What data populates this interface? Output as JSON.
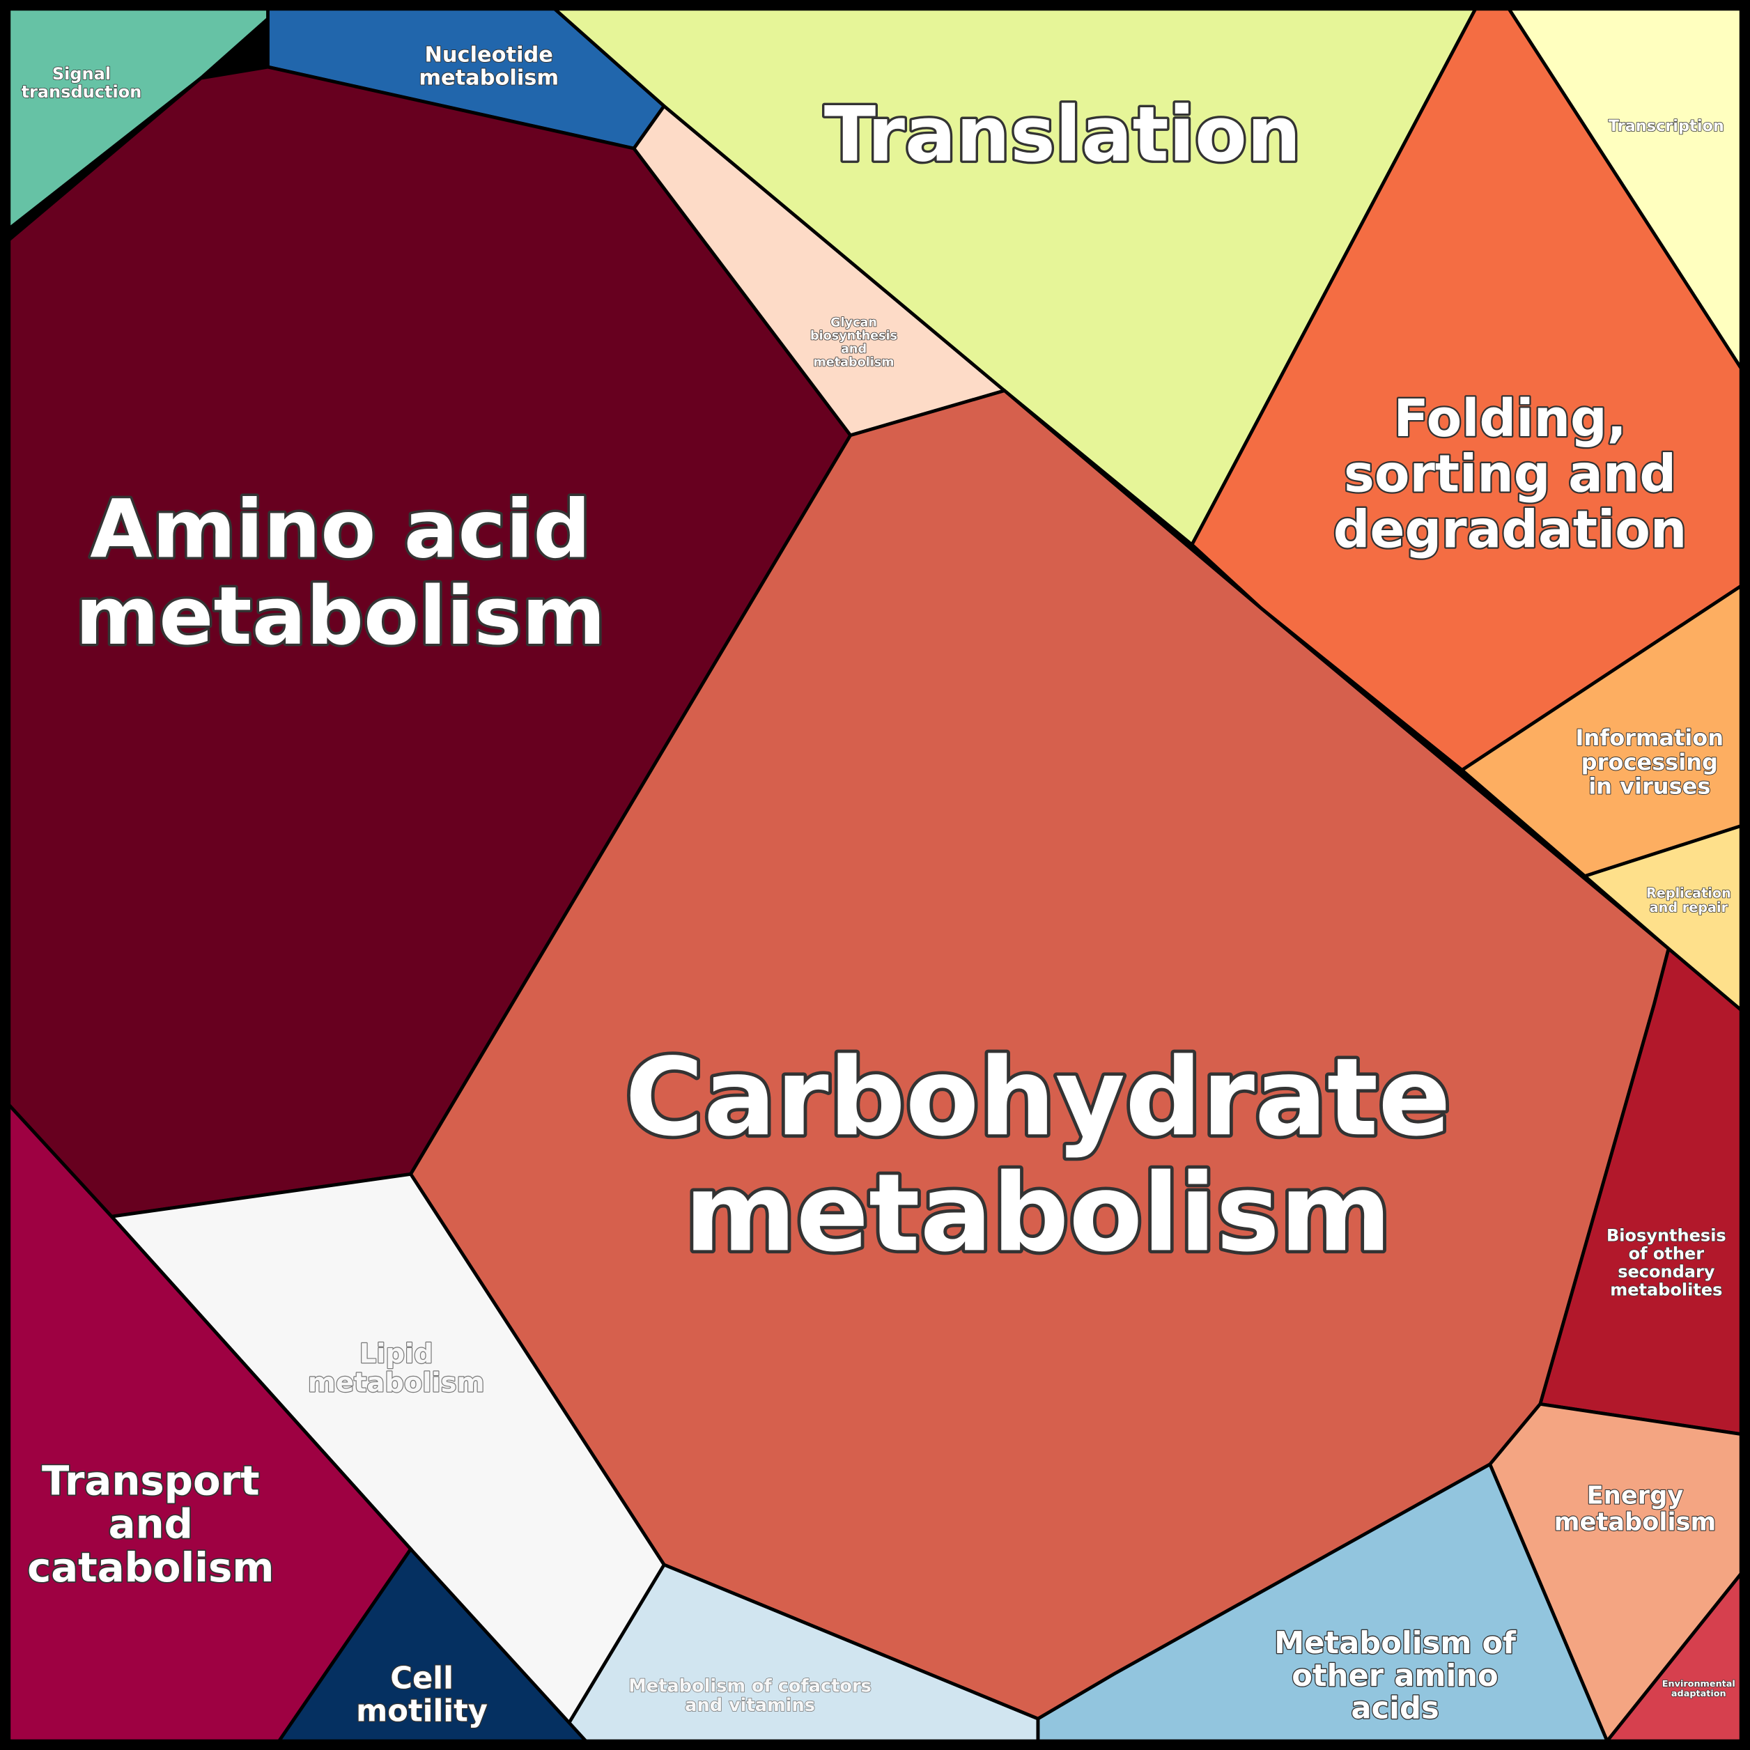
{
  "cells": [
    {
      "label": [
        "Signal",
        "transduction"
      ]
    },
    {
      "label": [
        "Nucleotide",
        "metabolism"
      ]
    },
    {
      "label": [
        "Amino acid",
        "metabolism"
      ]
    },
    {
      "label": [
        "Glycan",
        "biosynthesis",
        "and",
        "metabolism"
      ]
    },
    {
      "label": [
        "Translation"
      ]
    },
    {
      "label": [
        "Transcription"
      ]
    },
    {
      "label": [
        "Folding,",
        "sorting and",
        "degradation"
      ]
    },
    {
      "label": [
        "Information",
        "processing",
        "in viruses"
      ]
    },
    {
      "label": [
        "Replication",
        "and repair"
      ]
    },
    {
      "label": [
        "Biosynthesis",
        "of other",
        "secondary",
        "metabolites"
      ]
    },
    {
      "label": [
        "Carbohydrate",
        "metabolism"
      ]
    },
    {
      "label": [
        "Energy",
        "metabolism"
      ]
    },
    {
      "label": [
        "Environmental",
        "adaptation"
      ]
    },
    {
      "label": [
        "Metabolism of",
        "other amino",
        "acids"
      ]
    },
    {
      "label": [
        "Metabolism of cofactors",
        "and vitamins"
      ]
    },
    {
      "label": [
        "Lipid",
        "metabolism"
      ]
    },
    {
      "label": [
        "Transport",
        "and",
        "catabolism"
      ]
    },
    {
      "label": [
        "Cell",
        "motility"
      ]
    }
  ]
}
